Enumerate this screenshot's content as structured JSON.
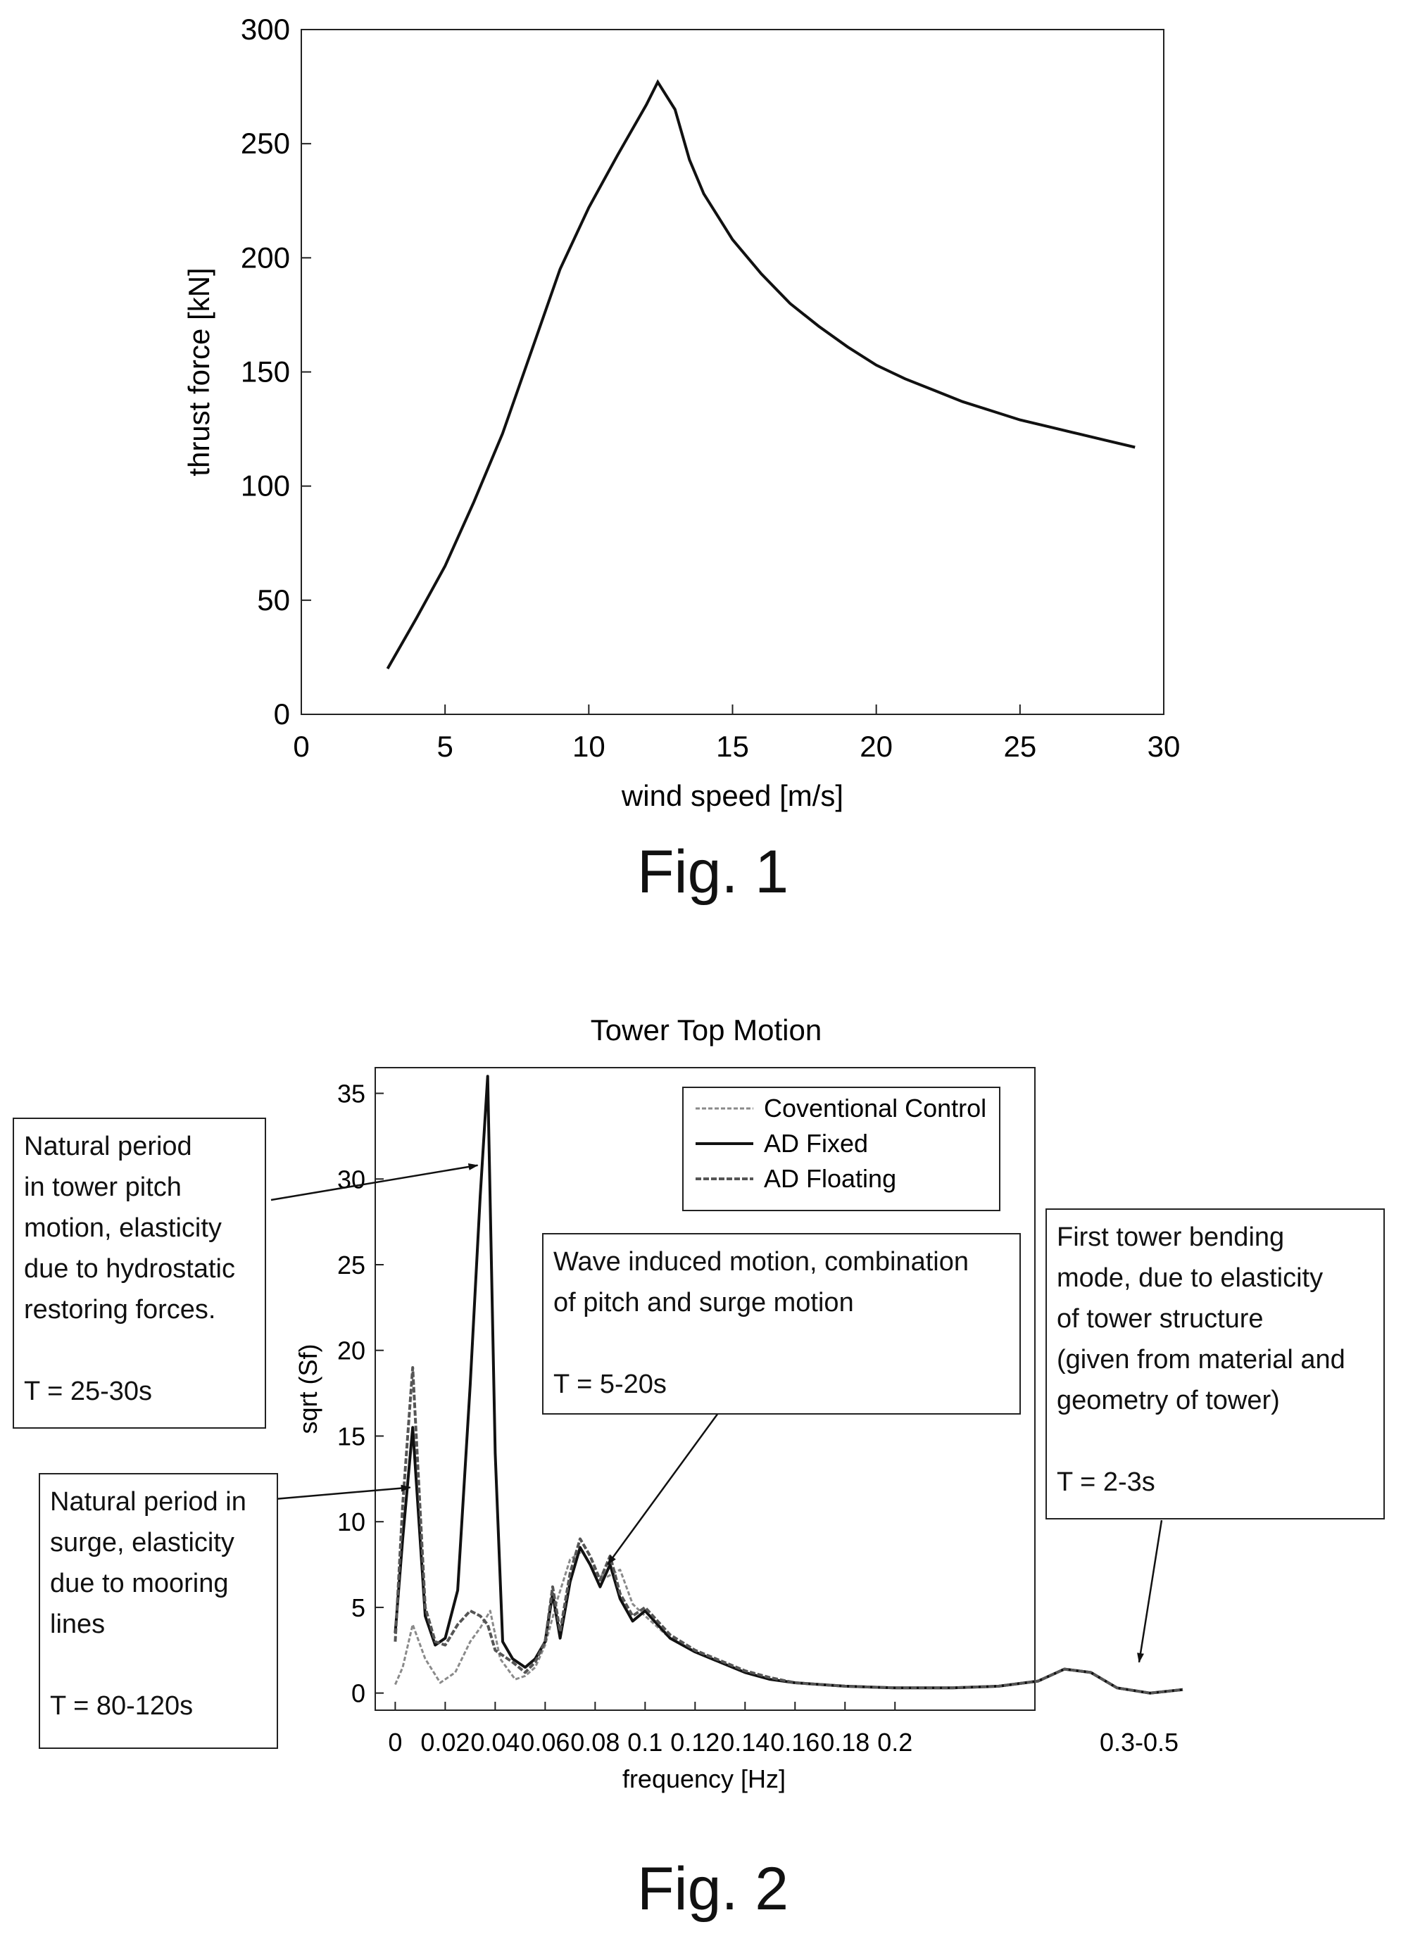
{
  "chart_data": [
    {
      "type": "line",
      "caption": "Fig. 1",
      "xlabel": "wind speed [m/s]",
      "ylabel": "thrust force [kN]",
      "xlim": [
        0,
        30
      ],
      "ylim": [
        0,
        300
      ],
      "xticks": [
        "0",
        "5",
        "10",
        "15",
        "20",
        "25",
        "30"
      ],
      "yticks": [
        "0",
        "50",
        "100",
        "150",
        "200",
        "250",
        "300"
      ],
      "grid": false,
      "series": [
        {
          "x": [
            3,
            4,
            5,
            6,
            7,
            8,
            9,
            10,
            11,
            12,
            12.4,
            13,
            13.5,
            14,
            15,
            16,
            17,
            18,
            19,
            20,
            21,
            22,
            23,
            24,
            25,
            26,
            27,
            28,
            29
          ],
          "y": [
            20,
            42,
            65,
            93,
            123,
            159,
            195,
            222,
            245,
            267,
            277,
            265,
            243,
            228,
            208,
            193,
            180,
            170,
            161,
            153,
            147,
            142,
            137,
            133,
            129,
            126,
            123,
            120,
            117
          ]
        }
      ]
    },
    {
      "type": "line",
      "caption": "Fig. 2",
      "title": "Tower Top Motion",
      "xlabel": "frequency [Hz]",
      "ylabel": "sqrt (Sf)",
      "xlim": [
        -0.008,
        0.256
      ],
      "ylim": [
        -1,
        36.5
      ],
      "xticks": [
        "0",
        "0.02",
        "0.04",
        "0.06",
        "0.08",
        "0.1",
        "0.12",
        "0.14",
        "0.16",
        "0.18",
        "0.2",
        "0.3-0.5"
      ],
      "yticks": [
        "0",
        "5",
        "10",
        "15",
        "20",
        "25",
        "30",
        "35"
      ],
      "grid": false,
      "legend": "top-right",
      "series": [
        {
          "name": "Coventional Control",
          "color": "#8a8a8a",
          "x": [
            0,
            0.003,
            0.007,
            0.012,
            0.018,
            0.024,
            0.03,
            0.034,
            0.038,
            0.042,
            0.048,
            0.052,
            0.056,
            0.06,
            0.065,
            0.07,
            0.075,
            0.08,
            0.085,
            0.09,
            0.095,
            0.1,
            0.11,
            0.12,
            0.13,
            0.14,
            0.15,
            0.16,
            0.17,
            0.18,
            0.19,
            0.2,
            0.208,
            0.215,
            0.222,
            0.228,
            0.232,
            0.236,
            0.24,
            0.245,
            0.25
          ],
          "y": [
            0.5,
            1.5,
            4.0,
            2.0,
            0.6,
            1.2,
            3.0,
            3.8,
            4.8,
            2.0,
            0.8,
            1.0,
            1.5,
            2.8,
            5.5,
            7.8,
            8.3,
            7.0,
            6.8,
            7.2,
            5.2,
            4.5,
            3.2,
            2.4,
            1.8,
            1.2,
            0.8,
            0.6,
            0.5,
            0.4,
            0.35,
            0.3,
            0.3,
            0.3,
            0.4,
            0.7,
            1.4,
            1.2,
            0.3,
            0.0,
            0.2
          ]
        },
        {
          "name": "AD Fixed",
          "color": "#111111",
          "x": [
            0,
            0.003,
            0.007,
            0.012,
            0.016,
            0.02,
            0.025,
            0.03,
            0.034,
            0.037,
            0.04,
            0.043,
            0.047,
            0.052,
            0.056,
            0.06,
            0.063,
            0.066,
            0.07,
            0.074,
            0.078,
            0.082,
            0.086,
            0.09,
            0.095,
            0.1,
            0.11,
            0.12,
            0.13,
            0.14,
            0.15,
            0.16,
            0.17,
            0.18,
            0.19,
            0.2,
            0.208,
            0.215,
            0.222,
            0.228,
            0.232,
            0.236,
            0.24,
            0.245,
            0.25
          ],
          "y": [
            3.5,
            9.0,
            15.5,
            4.5,
            2.8,
            3.2,
            6.0,
            18.0,
            29.0,
            36.0,
            14.0,
            3.0,
            2.0,
            1.5,
            2.0,
            3.0,
            5.8,
            3.2,
            6.5,
            8.5,
            7.5,
            6.2,
            7.5,
            5.5,
            4.2,
            4.8,
            3.2,
            2.4,
            1.8,
            1.2,
            0.8,
            0.6,
            0.5,
            0.4,
            0.35,
            0.3,
            0.3,
            0.3,
            0.4,
            0.7,
            1.4,
            1.2,
            0.3,
            0.0,
            0.2
          ]
        },
        {
          "name": "AD Floating",
          "color": "#555555",
          "x": [
            0,
            0.003,
            0.007,
            0.012,
            0.016,
            0.02,
            0.025,
            0.03,
            0.034,
            0.037,
            0.04,
            0.043,
            0.047,
            0.052,
            0.056,
            0.06,
            0.063,
            0.066,
            0.07,
            0.074,
            0.078,
            0.082,
            0.086,
            0.09,
            0.095,
            0.1,
            0.11,
            0.12,
            0.13,
            0.14,
            0.15,
            0.16,
            0.17,
            0.18,
            0.19,
            0.2,
            0.208,
            0.215,
            0.222,
            0.228,
            0.232,
            0.236,
            0.24,
            0.245,
            0.25
          ],
          "y": [
            3.0,
            11.0,
            19.0,
            5.0,
            3.0,
            2.8,
            4.0,
            4.8,
            4.5,
            4.0,
            2.5,
            2.2,
            1.8,
            1.2,
            1.8,
            3.0,
            6.2,
            3.6,
            7.0,
            9.0,
            8.0,
            6.6,
            8.0,
            5.8,
            4.5,
            5.0,
            3.4,
            2.5,
            1.9,
            1.3,
            0.9,
            0.6,
            0.5,
            0.4,
            0.35,
            0.3,
            0.3,
            0.3,
            0.4,
            0.7,
            1.4,
            1.2,
            0.3,
            0.0,
            0.2
          ]
        }
      ],
      "annotations": [
        {
          "lines": [
            "Natural period",
            "in tower pitch",
            "motion, elasticity",
            "due to hydrostatic",
            "restoring forces.",
            "",
            "T = 25-30s"
          ],
          "target": [
            0.033,
            30.8
          ]
        },
        {
          "lines": [
            "Natural period in",
            "surge, elasticity",
            "due to mooring",
            "lines",
            "",
            "T = 80-120s"
          ],
          "target": [
            0.006,
            12.0
          ]
        },
        {
          "lines": [
            "Wave induced motion, combination",
            "of pitch and surge motion",
            "",
            "T = 5-20s"
          ],
          "target": [
            0.085,
            7.5
          ]
        },
        {
          "lines": [
            "First tower bending",
            "mode, due to elasticity",
            "of tower structure",
            "(given from material and",
            "geometry of tower)",
            "",
            "T = 2-3s"
          ],
          "target": [
            0.231,
            1.8
          ]
        }
      ]
    }
  ]
}
